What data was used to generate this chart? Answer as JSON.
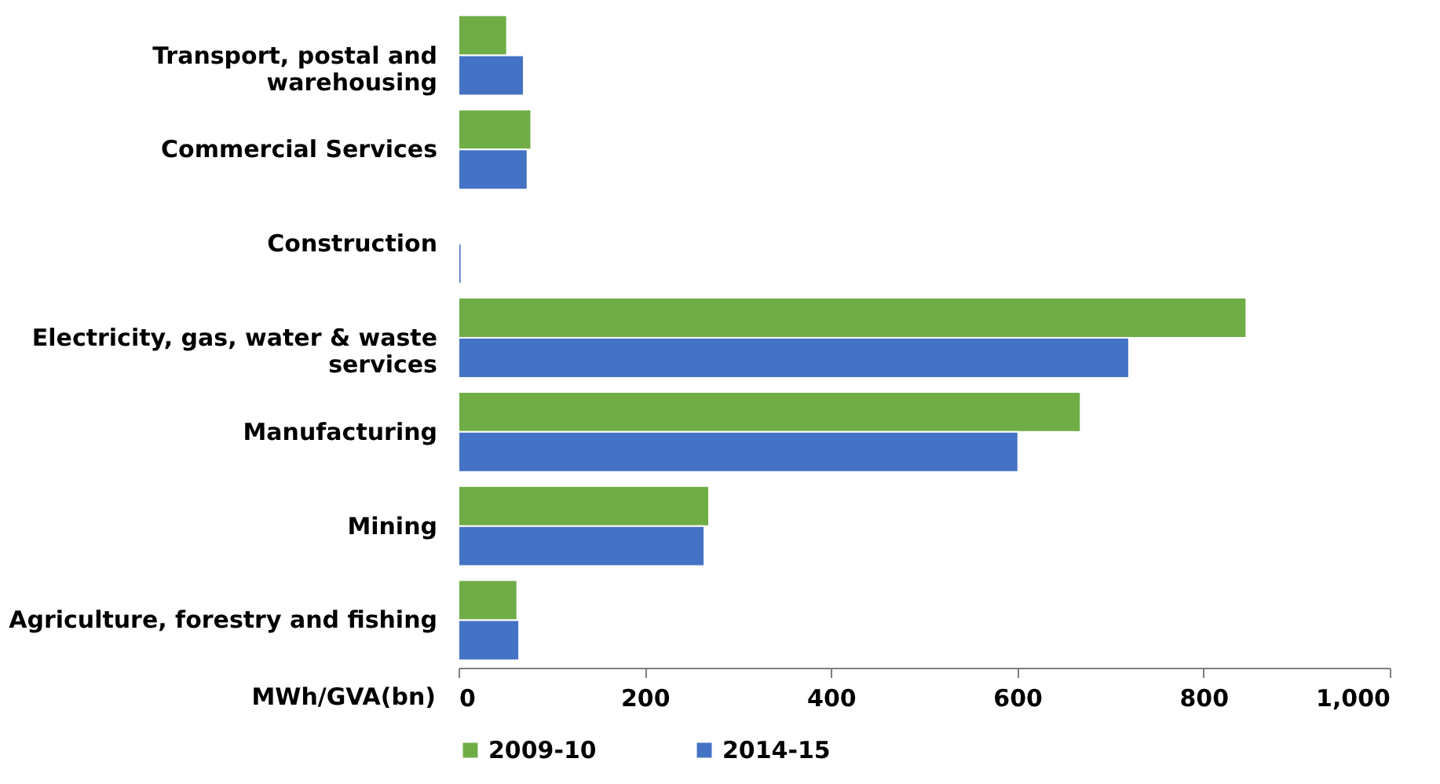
{
  "chart_data": {
    "type": "bar",
    "orientation": "horizontal",
    "xlabel": "MWh/GVA(bn)",
    "categories": [
      "Transport, postal and\nwarehousing",
      "Commercial Services",
      "Construction",
      "Electricity, gas, water & waste\nservices",
      "Manufacturing",
      "Mining",
      "Agriculture, forestry and fishing"
    ],
    "series": [
      {
        "name": "2009-10",
        "color": "#70ad47",
        "values": [
          52,
          78,
          null,
          846,
          668,
          269,
          63
        ]
      },
      {
        "name": "2014-15",
        "color": "#4472c4",
        "values": [
          70,
          74,
          3,
          720,
          601,
          264,
          65
        ]
      }
    ],
    "xlim": [
      0,
      1000
    ],
    "xticks": [
      0,
      200,
      400,
      600,
      800,
      {
        "value": 1000,
        "label": "1,000"
      }
    ],
    "grid": false,
    "legend": "bottom"
  }
}
